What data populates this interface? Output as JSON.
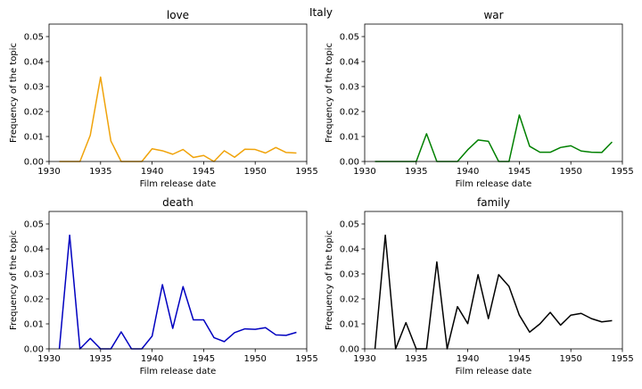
{
  "figure_title": "Italy",
  "chart_data": [
    {
      "type": "line",
      "title": "love",
      "xlabel": "Film release date",
      "ylabel": "Frequency of the topic",
      "xlim": [
        1930,
        1955
      ],
      "ylim": [
        0,
        0.055
      ],
      "xticks": [
        1930,
        1935,
        1940,
        1945,
        1950,
        1955
      ],
      "yticks": [
        "0.00",
        "0.01",
        "0.02",
        "0.03",
        "0.04",
        "0.05"
      ],
      "grid": false,
      "color": "#f0a30a",
      "x": [
        1931,
        1932,
        1933,
        1934,
        1935,
        1936,
        1937,
        1938,
        1939,
        1940,
        1941,
        1942,
        1943,
        1944,
        1945,
        1946,
        1947,
        1948,
        1949,
        1950,
        1951,
        1952,
        1953,
        1954
      ],
      "y": [
        0.0,
        0.0,
        0.0,
        0.0105,
        0.0338,
        0.0082,
        0.0,
        0.0,
        0.0,
        0.0051,
        0.0043,
        0.0029,
        0.0048,
        0.0016,
        0.0024,
        0.0,
        0.0043,
        0.0017,
        0.0049,
        0.0048,
        0.0034,
        0.0056,
        0.0036,
        0.0034
      ]
    },
    {
      "type": "line",
      "title": "war",
      "xlabel": "Film release date",
      "ylabel": "Frequency of the topic",
      "xlim": [
        1930,
        1955
      ],
      "ylim": [
        0,
        0.055
      ],
      "xticks": [
        1930,
        1935,
        1940,
        1945,
        1950,
        1955
      ],
      "yticks": [
        "0.00",
        "0.01",
        "0.02",
        "0.03",
        "0.04",
        "0.05"
      ],
      "grid": false,
      "color": "#008000",
      "x": [
        1931,
        1932,
        1933,
        1934,
        1935,
        1936,
        1937,
        1938,
        1939,
        1940,
        1941,
        1942,
        1943,
        1944,
        1945,
        1946,
        1947,
        1948,
        1949,
        1950,
        1951,
        1952,
        1953,
        1954
      ],
      "y": [
        0.0,
        0.0,
        0.0,
        0.0,
        0.0,
        0.0111,
        0.0,
        0.0,
        0.0,
        0.0047,
        0.0086,
        0.0081,
        0.0,
        0.0,
        0.0186,
        0.0061,
        0.0037,
        0.0037,
        0.0056,
        0.0063,
        0.0042,
        0.0037,
        0.0036,
        0.0078
      ]
    },
    {
      "type": "line",
      "title": "death",
      "xlabel": "Film release date",
      "ylabel": "Frequency of the topic",
      "xlim": [
        1930,
        1955
      ],
      "ylim": [
        0,
        0.055
      ],
      "xticks": [
        1930,
        1935,
        1940,
        1945,
        1950,
        1955
      ],
      "yticks": [
        "0.00",
        "0.01",
        "0.02",
        "0.03",
        "0.04",
        "0.05"
      ],
      "grid": false,
      "color": "#0000c0",
      "x": [
        1931,
        1932,
        1933,
        1934,
        1935,
        1936,
        1937,
        1938,
        1939,
        1940,
        1941,
        1942,
        1943,
        1944,
        1945,
        1946,
        1947,
        1948,
        1949,
        1950,
        1951,
        1952,
        1953,
        1954
      ],
      "y": [
        0.0,
        0.0455,
        0.0,
        0.0042,
        0.0,
        0.0,
        0.0068,
        0.0,
        0.0,
        0.0051,
        0.0257,
        0.0082,
        0.0249,
        0.0116,
        0.0116,
        0.0045,
        0.0029,
        0.0065,
        0.008,
        0.0078,
        0.0085,
        0.0056,
        0.0054,
        0.0066
      ]
    },
    {
      "type": "line",
      "title": "family",
      "xlabel": "Film release date",
      "ylabel": "Frequency of the topic",
      "xlim": [
        1930,
        1955
      ],
      "ylim": [
        0,
        0.055
      ],
      "xticks": [
        1930,
        1935,
        1940,
        1945,
        1950,
        1955
      ],
      "yticks": [
        "0.00",
        "0.01",
        "0.02",
        "0.03",
        "0.04",
        "0.05"
      ],
      "grid": false,
      "color": "#000000",
      "x": [
        1931,
        1932,
        1933,
        1934,
        1935,
        1936,
        1937,
        1938,
        1939,
        1940,
        1941,
        1942,
        1943,
        1944,
        1945,
        1946,
        1947,
        1948,
        1949,
        1950,
        1951,
        1952,
        1953,
        1954
      ],
      "y": [
        0.0,
        0.0455,
        0.0,
        0.0105,
        0.0,
        0.0,
        0.0348,
        0.0,
        0.0169,
        0.0101,
        0.0297,
        0.0121,
        0.0297,
        0.025,
        0.0135,
        0.0067,
        0.01,
        0.0146,
        0.0095,
        0.0135,
        0.0142,
        0.0121,
        0.0108,
        0.0113
      ]
    }
  ]
}
